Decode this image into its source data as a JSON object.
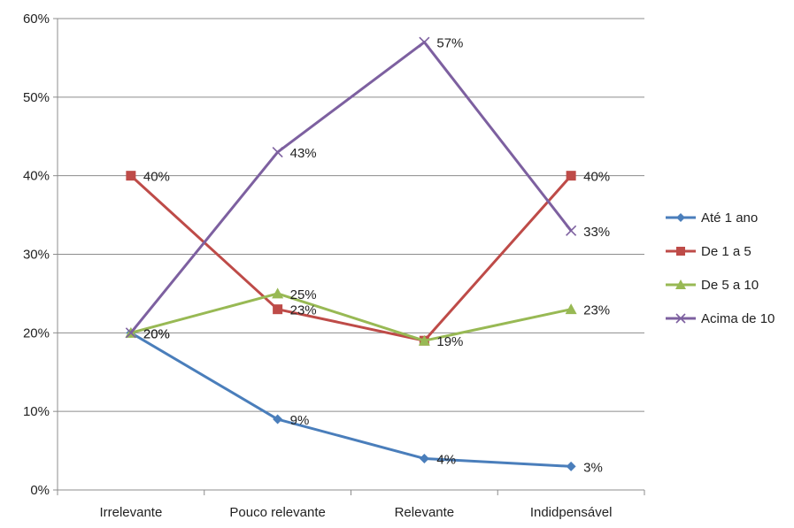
{
  "chart_data": {
    "type": "line",
    "categories": [
      "Irrelevante",
      "Pouco relevante",
      "Relevante",
      "Indidpensável"
    ],
    "ylim": [
      0,
      60
    ],
    "yticks": [
      0,
      10,
      20,
      30,
      40,
      50,
      60
    ],
    "ytick_labels": [
      "0%",
      "10%",
      "20%",
      "30%",
      "40%",
      "50%",
      "60%"
    ],
    "grid": true,
    "legend_position": "right",
    "series": [
      {
        "name": "Até 1 ano",
        "values": [
          20,
          9,
          4,
          3
        ],
        "labels": [
          "",
          "9%",
          "4%",
          "3%"
        ],
        "color": "#4a7ebb",
        "marker": "diamond"
      },
      {
        "name": "De 1 a 5",
        "values": [
          40,
          23,
          19,
          40
        ],
        "labels": [
          "40%",
          "23%",
          "",
          "40%"
        ],
        "color": "#be4b48",
        "marker": "square"
      },
      {
        "name": "De 5 a 10",
        "values": [
          20,
          25,
          19,
          23
        ],
        "labels": [
          "20%",
          "25%",
          "19%",
          "23%"
        ],
        "color": "#98b954",
        "marker": "triangle"
      },
      {
        "name": "Acima de 10",
        "values": [
          20,
          43,
          57,
          33
        ],
        "labels": [
          "20%",
          "43%",
          "57%",
          "33%"
        ],
        "color": "#7d60a0",
        "marker": "x"
      }
    ]
  }
}
